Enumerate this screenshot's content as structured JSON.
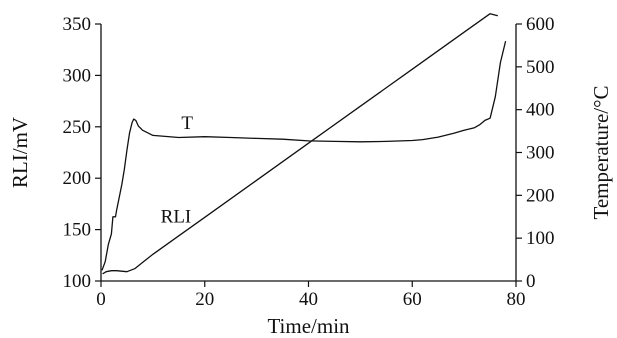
{
  "chart_data": {
    "type": "line",
    "xlabel": "Time/min",
    "ylabel": "RLI/mV",
    "y2label": "Temperature/°C",
    "xlim": [
      0,
      80
    ],
    "ylim": [
      100,
      350
    ],
    "y2lim": [
      0,
      600
    ],
    "x_ticks": [
      0,
      20,
      40,
      60,
      80
    ],
    "y_ticks": [
      100,
      150,
      200,
      250,
      300,
      350
    ],
    "y2_ticks": [
      0,
      100,
      200,
      300,
      400,
      500,
      600
    ],
    "grid": false,
    "legend": "none",
    "annotations": [
      {
        "text": "T",
        "series": "T"
      },
      {
        "text": "RLI",
        "series": "RLI"
      }
    ],
    "series": [
      {
        "name": "RLI",
        "axis": "left",
        "x": [
          0.3,
          1,
          2,
          3,
          5,
          6.5,
          8,
          10,
          15,
          20,
          30,
          40,
          50,
          60,
          70,
          75,
          76.5
        ],
        "values": [
          107,
          109,
          110,
          110,
          109,
          112,
          118,
          126,
          144,
          162,
          198,
          234,
          270,
          306,
          342,
          360,
          358
        ]
      },
      {
        "name": "T",
        "axis": "right",
        "x": [
          0.2,
          0.8,
          1.4,
          2,
          2.3,
          2.8,
          3,
          3.5,
          4,
          4.5,
          5,
          5.5,
          6,
          6.3,
          6.7,
          7.2,
          8,
          10,
          15,
          20,
          25,
          30,
          35,
          40,
          45,
          50,
          55,
          60,
          62,
          65,
          68,
          70,
          72,
          73,
          74,
          75,
          76,
          77,
          78
        ],
        "values": [
          25,
          45,
          85,
          110,
          150,
          150,
          165,
          195,
          225,
          260,
          305,
          345,
          370,
          378,
          375,
          362,
          352,
          340,
          335,
          337,
          335,
          333,
          331,
          327,
          326,
          325,
          326,
          328,
          330,
          336,
          345,
          352,
          358,
          365,
          375,
          380,
          430,
          510,
          560
        ]
      }
    ]
  }
}
